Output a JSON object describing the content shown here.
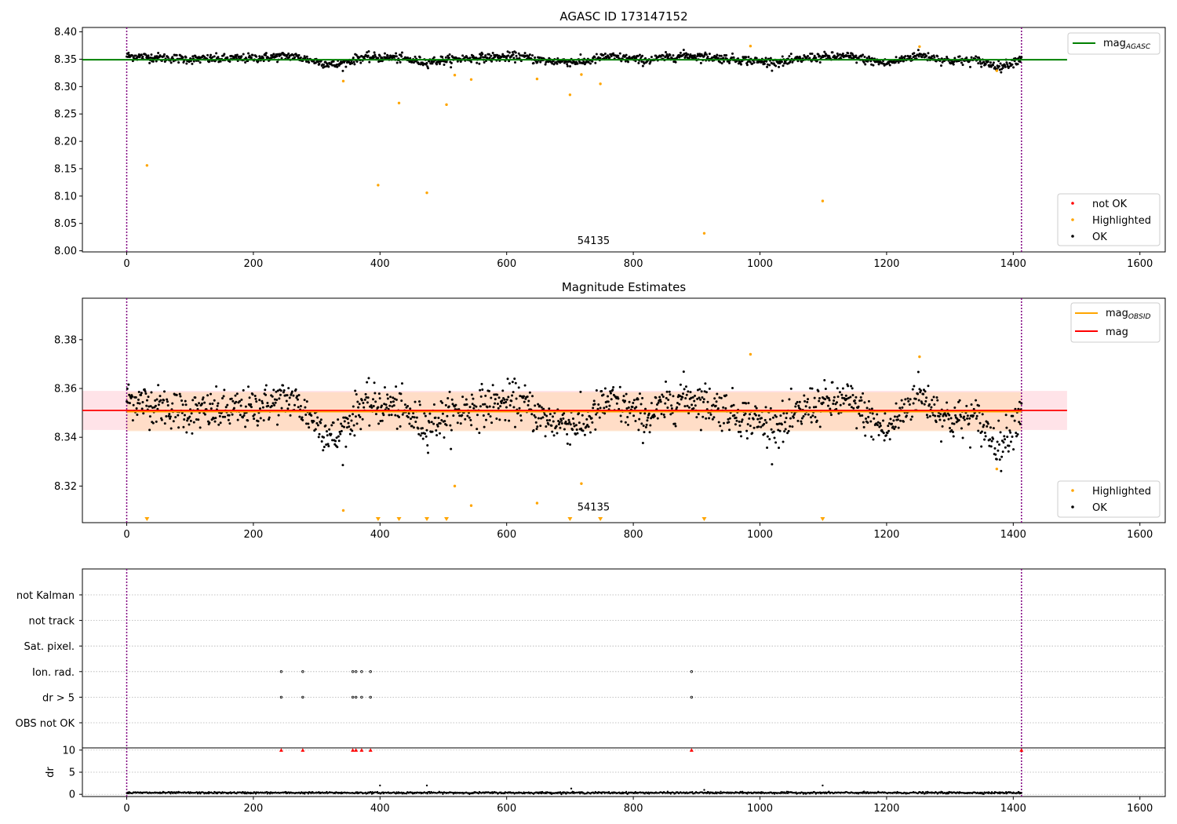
{
  "figure_title": "",
  "colors": {
    "ok": "#000000",
    "highlighted": "#ffa500",
    "not_ok": "#ff0000",
    "agasc_line": "#008000",
    "obsid_line": "#ffa500",
    "mag_line": "#ff0000",
    "band_mag": "#ffc0cb",
    "band_obsid": "#ffdab9",
    "vline": "#800080",
    "grid": "#b0b0b0"
  },
  "chart_data": [
    {
      "type": "scatter",
      "title": "AGASC ID 173147152",
      "xlim": [
        -70,
        1640
      ],
      "ylim": [
        7.998,
        8.408
      ],
      "xticks": [
        "0",
        "200",
        "400",
        "600",
        "800",
        "1000",
        "1200",
        "1400",
        "1600"
      ],
      "yticks": [
        "8.00",
        "8.05",
        "8.10",
        "8.15",
        "8.20",
        "8.25",
        "8.30",
        "8.35",
        "8.40"
      ],
      "annotation": {
        "text": "54135",
        "x": 705,
        "y": 8.012
      },
      "vlines_x": [
        0,
        1413
      ],
      "hline": {
        "name": "mag_AGASC",
        "y": 8.349,
        "x0": -70,
        "x1": 1485
      },
      "legend_lines": [
        "mag",
        "AGASC"
      ],
      "legend_points": [
        "not OK",
        "Highlighted",
        "OK"
      ],
      "series": [
        {
          "name": "Highlighted",
          "points": [
            [
              32,
              8.156
            ],
            [
              342,
              8.31
            ],
            [
              397,
              8.12
            ],
            [
              430,
              8.27
            ],
            [
              474,
              8.106
            ],
            [
              505,
              8.267
            ],
            [
              518,
              8.321
            ],
            [
              544,
              8.313
            ],
            [
              648,
              8.314
            ],
            [
              700,
              8.285
            ],
            [
              718,
              8.322
            ],
            [
              748,
              8.305
            ],
            [
              912,
              8.032
            ],
            [
              985,
              8.374
            ],
            [
              1099,
              8.091
            ],
            [
              1252,
              8.373
            ],
            [
              1374,
              8.329
            ]
          ]
        },
        {
          "name": "OK",
          "summary": "dense track ~1450 points, x 0–1413, mean 8.351 ± 0.008 (same data as panel 2)"
        }
      ]
    },
    {
      "type": "scatter",
      "title": "Magnitude Estimates",
      "xlim": [
        -70,
        1640
      ],
      "ylim": [
        8.305,
        8.397
      ],
      "xticks": [
        "0",
        "200",
        "400",
        "600",
        "800",
        "1000",
        "1200",
        "1400",
        "1600"
      ],
      "yticks": [
        "8.32",
        "8.34",
        "8.36",
        "8.38"
      ],
      "annotation": {
        "text": "54135",
        "x": 705,
        "y": 8.308
      },
      "vlines_x": [
        0,
        1413
      ],
      "hline_mag": {
        "y": 8.351,
        "x0": -70,
        "x1": 1485,
        "band": [
          8.343,
          8.359
        ]
      },
      "hline_obsid": {
        "y": 8.3505,
        "x0": 0,
        "x1": 1413,
        "band": [
          8.3425,
          8.3585
        ]
      },
      "legend_lines": [
        [
          "mag",
          "OBSID"
        ],
        [
          "mag",
          ""
        ]
      ],
      "legend_points": [
        "Highlighted",
        "OK"
      ],
      "ok_series": {
        "n": 1450,
        "x_range": [
          0,
          1413
        ],
        "segments": [
          [
            0,
            8.356
          ],
          [
            100,
            8.35
          ],
          [
            180,
            8.351
          ],
          [
            260,
            8.356
          ],
          [
            300,
            8.346
          ],
          [
            330,
            8.339
          ],
          [
            370,
            8.353
          ],
          [
            420,
            8.353
          ],
          [
            470,
            8.345
          ],
          [
            540,
            8.352
          ],
          [
            620,
            8.355
          ],
          [
            660,
            8.347
          ],
          [
            720,
            8.345
          ],
          [
            760,
            8.355
          ],
          [
            820,
            8.348
          ],
          [
            880,
            8.357
          ],
          [
            950,
            8.351
          ],
          [
            1000,
            8.346
          ],
          [
            1040,
            8.345
          ],
          [
            1080,
            8.353
          ],
          [
            1140,
            8.355
          ],
          [
            1200,
            8.342
          ],
          [
            1250,
            8.358
          ],
          [
            1300,
            8.347
          ],
          [
            1340,
            8.348
          ],
          [
            1380,
            8.336
          ],
          [
            1413,
            8.352
          ]
        ],
        "noise": 0.0055
      },
      "series": [
        {
          "name": "Highlighted",
          "points": [
            [
              342,
              8.31
            ],
            [
              518,
              8.32
            ],
            [
              544,
              8.312
            ],
            [
              648,
              8.313
            ],
            [
              718,
              8.321
            ],
            [
              985,
              8.374
            ],
            [
              1252,
              8.373
            ],
            [
              1374,
              8.327
            ]
          ]
        },
        {
          "name": "Highlighted (off-scale)",
          "x": [
            32,
            397,
            430,
            474,
            505,
            700,
            748,
            912,
            1099
          ]
        }
      ]
    },
    {
      "type": "scatter",
      "title": "",
      "xlim": [
        -70,
        1640
      ],
      "xticks": [
        "0",
        "200",
        "400",
        "600",
        "800",
        "1000",
        "1200",
        "1400",
        "1600"
      ],
      "vlines_x": [
        0,
        1413
      ],
      "flag_rows": [
        "not Kalman",
        "not track",
        "Sat. pixel.",
        "Ion. rad.",
        "dr > 5",
        "OBS not OK"
      ],
      "flags": {
        "Ion. rad.": [
          244,
          278,
          357,
          362,
          371,
          385,
          892
        ],
        "dr > 5": [
          244,
          278,
          357,
          362,
          371,
          385,
          892
        ]
      },
      "dr": {
        "ylabel": "dr",
        "ylim": [
          -0.5,
          10.5
        ],
        "yticks": [
          "0",
          "5",
          "10"
        ],
        "baseline": 0.35,
        "noise": 0.1,
        "spikes": [
          [
            400,
            2.0
          ],
          [
            474,
            2.0
          ],
          [
            702,
            1.3
          ],
          [
            912,
            1.0
          ],
          [
            1099,
            2.0
          ]
        ],
        "clipped_x": [
          244,
          278,
          357,
          362,
          371,
          385,
          892,
          1413
        ]
      }
    }
  ]
}
